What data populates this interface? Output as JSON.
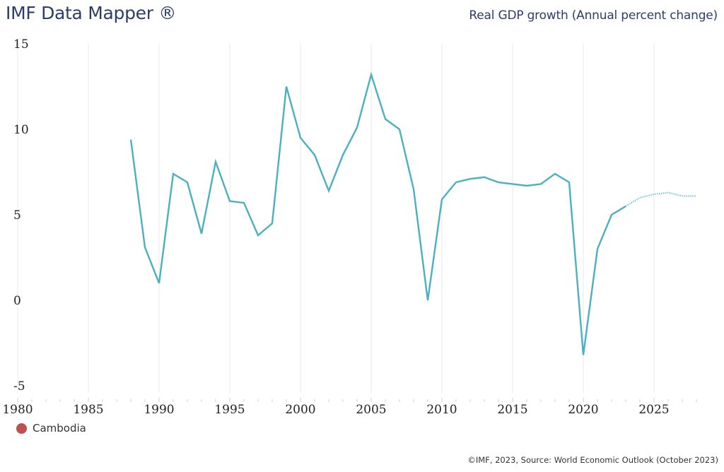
{
  "header": {
    "app_title": "IMF Data Mapper ®",
    "indicator_title": "Real GDP growth (Annual percent change)"
  },
  "legend": {
    "items": [
      {
        "label": "Cambodia",
        "color": "#c0504d"
      }
    ]
  },
  "footer": {
    "source": "©IMF, 2023, Source: World Economic Outlook (October 2023)"
  },
  "colors": {
    "line": "#4bb0c0",
    "title": "#2b3e6b",
    "grid": "#e8e8ee"
  },
  "chart_data": {
    "type": "line",
    "title": "Real GDP growth (Annual percent change)",
    "xlabel": "",
    "ylabel": "",
    "xlim": [
      1980,
      2028
    ],
    "ylim": [
      -5,
      15
    ],
    "x_ticks": [
      "1980",
      "1985",
      "1990",
      "1995",
      "2000",
      "2005",
      "2010",
      "2015",
      "2020",
      "2025"
    ],
    "y_ticks": [
      "15",
      "10",
      "5",
      "0",
      "-5"
    ],
    "grid": "vertical",
    "legend_position": "bottom-left",
    "projection_start": 2023,
    "series": [
      {
        "name": "Cambodia",
        "x": [
          1988,
          1989,
          1990,
          1991,
          1992,
          1993,
          1994,
          1995,
          1996,
          1997,
          1998,
          1999,
          2000,
          2001,
          2002,
          2003,
          2004,
          2005,
          2006,
          2007,
          2008,
          2009,
          2010,
          2011,
          2012,
          2013,
          2014,
          2015,
          2016,
          2017,
          2018,
          2019,
          2020,
          2021,
          2022,
          2023,
          2024,
          2025,
          2026,
          2027,
          2028
        ],
        "values": [
          9.4,
          3.1,
          1.0,
          7.4,
          6.9,
          3.9,
          8.1,
          5.8,
          5.7,
          3.8,
          4.5,
          12.5,
          9.5,
          8.5,
          6.4,
          8.5,
          10.1,
          13.2,
          10.6,
          10.0,
          6.5,
          0.0,
          5.9,
          6.9,
          7.1,
          7.2,
          6.9,
          6.8,
          6.7,
          6.8,
          7.4,
          6.9,
          -3.2,
          3.0,
          5.0,
          5.5,
          6.0,
          6.2,
          6.3,
          6.1,
          6.1
        ]
      }
    ]
  }
}
